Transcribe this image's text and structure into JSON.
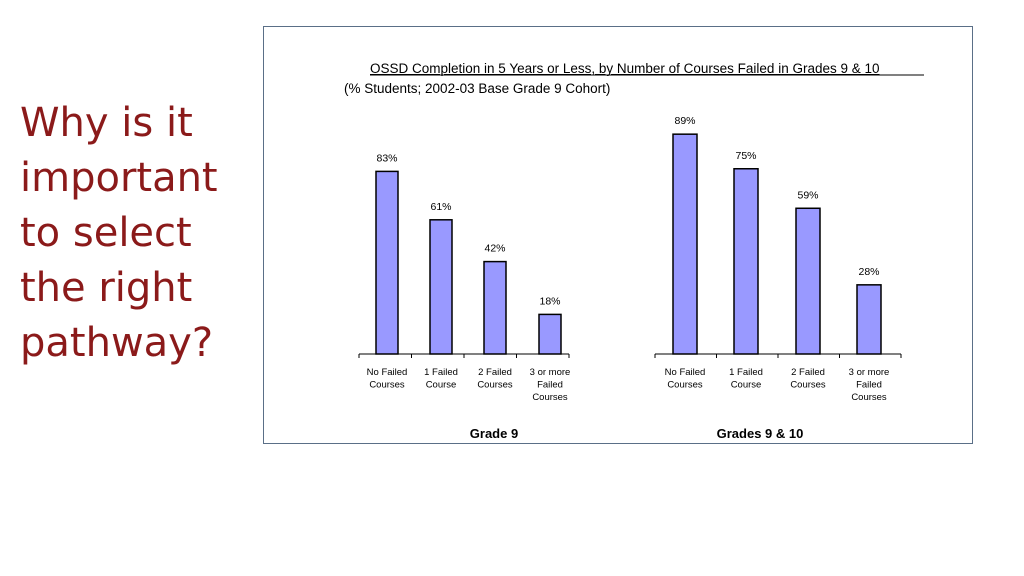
{
  "slide": {
    "title_lines": [
      "Why is it",
      "important",
      "to select",
      "the right",
      "pathway?"
    ]
  },
  "chart_data": {
    "type": "bar",
    "title": "OSSD Completion in 5 Years or Less, by Number of Courses Failed in Grades 9 & 10",
    "subtitle": "(% Students; 2002-03 Base Grade 9 Cohort)",
    "bar_color": "#9999ff",
    "bar_outline": "#000000",
    "title_color": "#8b1a1a",
    "grid": false,
    "panels": [
      {
        "xlabel": "Grade 9",
        "categories": [
          [
            "No Failed",
            "Courses"
          ],
          [
            "1 Failed",
            "Course"
          ],
          [
            "2 Failed",
            "Courses"
          ],
          [
            "3 or more",
            "Failed",
            "Courses"
          ]
        ],
        "values": [
          83,
          61,
          42,
          18
        ],
        "value_labels": [
          "83%",
          "61%",
          "42%",
          "18%"
        ]
      },
      {
        "xlabel": "Grades 9 & 10",
        "categories": [
          [
            "No Failed",
            "Courses"
          ],
          [
            "1 Failed",
            "Course"
          ],
          [
            "2 Failed",
            "Courses"
          ],
          [
            "3 or more",
            "Failed",
            "Courses"
          ]
        ],
        "values": [
          89,
          75,
          59,
          28
        ],
        "value_labels": [
          "89%",
          "75%",
          "59%",
          "28%"
        ]
      }
    ]
  }
}
